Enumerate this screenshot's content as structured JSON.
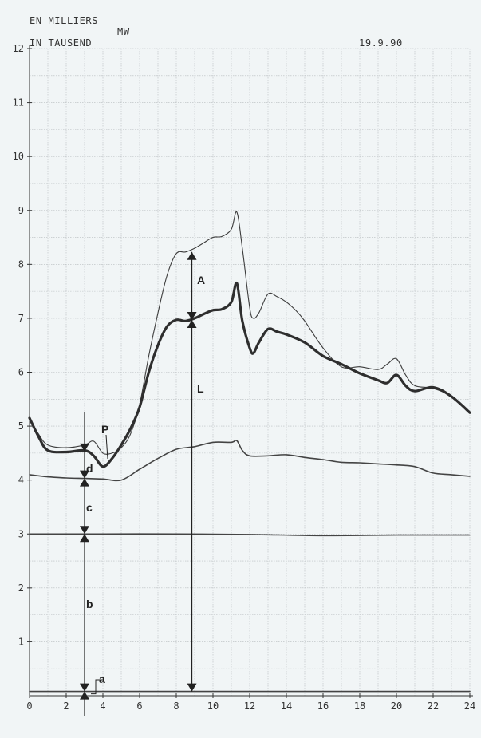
{
  "header": {
    "unit_fr": "EN MILLIERS",
    "unit_mw": "MW",
    "unit_de": "IN TAUSEND",
    "date": "19.9.90"
  },
  "annotations": {
    "A": "A",
    "L": "L",
    "P": "P",
    "a": "a",
    "b": "b",
    "c": "c",
    "d": "d"
  },
  "chart_data": {
    "type": "line",
    "title": "",
    "xlabel": "",
    "ylabel": "EN MILLIERS / IN TAUSEND MW",
    "xlim": [
      0,
      24
    ],
    "ylim": [
      0,
      12
    ],
    "x_ticks": [
      0,
      2,
      4,
      6,
      8,
      10,
      12,
      14,
      16,
      18,
      20,
      22,
      24
    ],
    "y_ticks": [
      1,
      2,
      3,
      4,
      5,
      6,
      7,
      8,
      9,
      10,
      11,
      12
    ],
    "grid": true,
    "series": [
      {
        "style": "thin",
        "x": [
          0,
          0.5,
          1,
          2,
          3,
          3.5,
          4,
          4.5,
          5,
          5.5,
          6,
          6.5,
          7,
          7.5,
          8,
          8.5,
          9,
          9.5,
          10,
          10.5,
          11,
          11.3,
          11.6,
          12,
          12.2,
          12.5,
          13,
          13.5,
          14,
          14.5,
          15,
          16,
          17,
          18,
          19,
          19.5,
          20,
          20.5,
          21,
          22,
          23,
          24
        ],
        "y": [
          5.15,
          4.85,
          4.65,
          4.6,
          4.65,
          4.72,
          4.5,
          4.5,
          4.6,
          4.85,
          5.4,
          6.3,
          7.1,
          7.8,
          8.2,
          8.23,
          8.3,
          8.4,
          8.5,
          8.52,
          8.65,
          8.97,
          8.3,
          7.2,
          7.0,
          7.1,
          7.45,
          7.4,
          7.3,
          7.15,
          6.95,
          6.45,
          6.1,
          6.1,
          6.05,
          6.15,
          6.25,
          5.95,
          5.75,
          5.7,
          5.55,
          5.25
        ]
      },
      {
        "style": "bold",
        "x": [
          0,
          0.5,
          1,
          2,
          3,
          3.5,
          4,
          4.5,
          5,
          5.5,
          6,
          6.5,
          7,
          7.5,
          8,
          8.5,
          9,
          9.5,
          10,
          10.5,
          11,
          11.3,
          11.6,
          12,
          12.2,
          12.5,
          13,
          13.5,
          14,
          15,
          16,
          17,
          18,
          19,
          19.5,
          20,
          20.5,
          21,
          22,
          23,
          24
        ],
        "y": [
          5.15,
          4.8,
          4.55,
          4.52,
          4.55,
          4.45,
          4.25,
          4.4,
          4.65,
          4.95,
          5.35,
          6.0,
          6.5,
          6.85,
          6.97,
          6.95,
          7.0,
          7.08,
          7.15,
          7.17,
          7.3,
          7.65,
          6.95,
          6.45,
          6.35,
          6.55,
          6.8,
          6.75,
          6.7,
          6.55,
          6.3,
          6.15,
          5.98,
          5.85,
          5.8,
          5.95,
          5.75,
          5.65,
          5.72,
          5.55,
          5.25
        ]
      },
      {
        "style": "medium",
        "x": [
          0,
          1,
          2,
          3,
          4,
          5,
          6,
          7,
          8,
          9,
          10,
          11,
          11.3,
          11.6,
          12,
          13,
          14,
          15,
          16,
          17,
          18,
          19,
          20,
          21,
          22,
          23,
          24
        ],
        "y": [
          4.1,
          4.06,
          4.04,
          4.03,
          4.02,
          4.0,
          4.2,
          4.4,
          4.57,
          4.62,
          4.7,
          4.7,
          4.73,
          4.55,
          4.45,
          4.45,
          4.47,
          4.42,
          4.38,
          4.33,
          4.32,
          4.3,
          4.28,
          4.25,
          4.13,
          4.1,
          4.07
        ]
      },
      {
        "style": "medium",
        "x": [
          0,
          4,
          8,
          12,
          16,
          20,
          24
        ],
        "y": [
          3.0,
          3.0,
          3.0,
          2.99,
          2.97,
          2.98,
          2.98
        ]
      },
      {
        "style": "medium",
        "x": [
          0,
          24
        ],
        "y": [
          0.08,
          0.08
        ]
      }
    ]
  }
}
